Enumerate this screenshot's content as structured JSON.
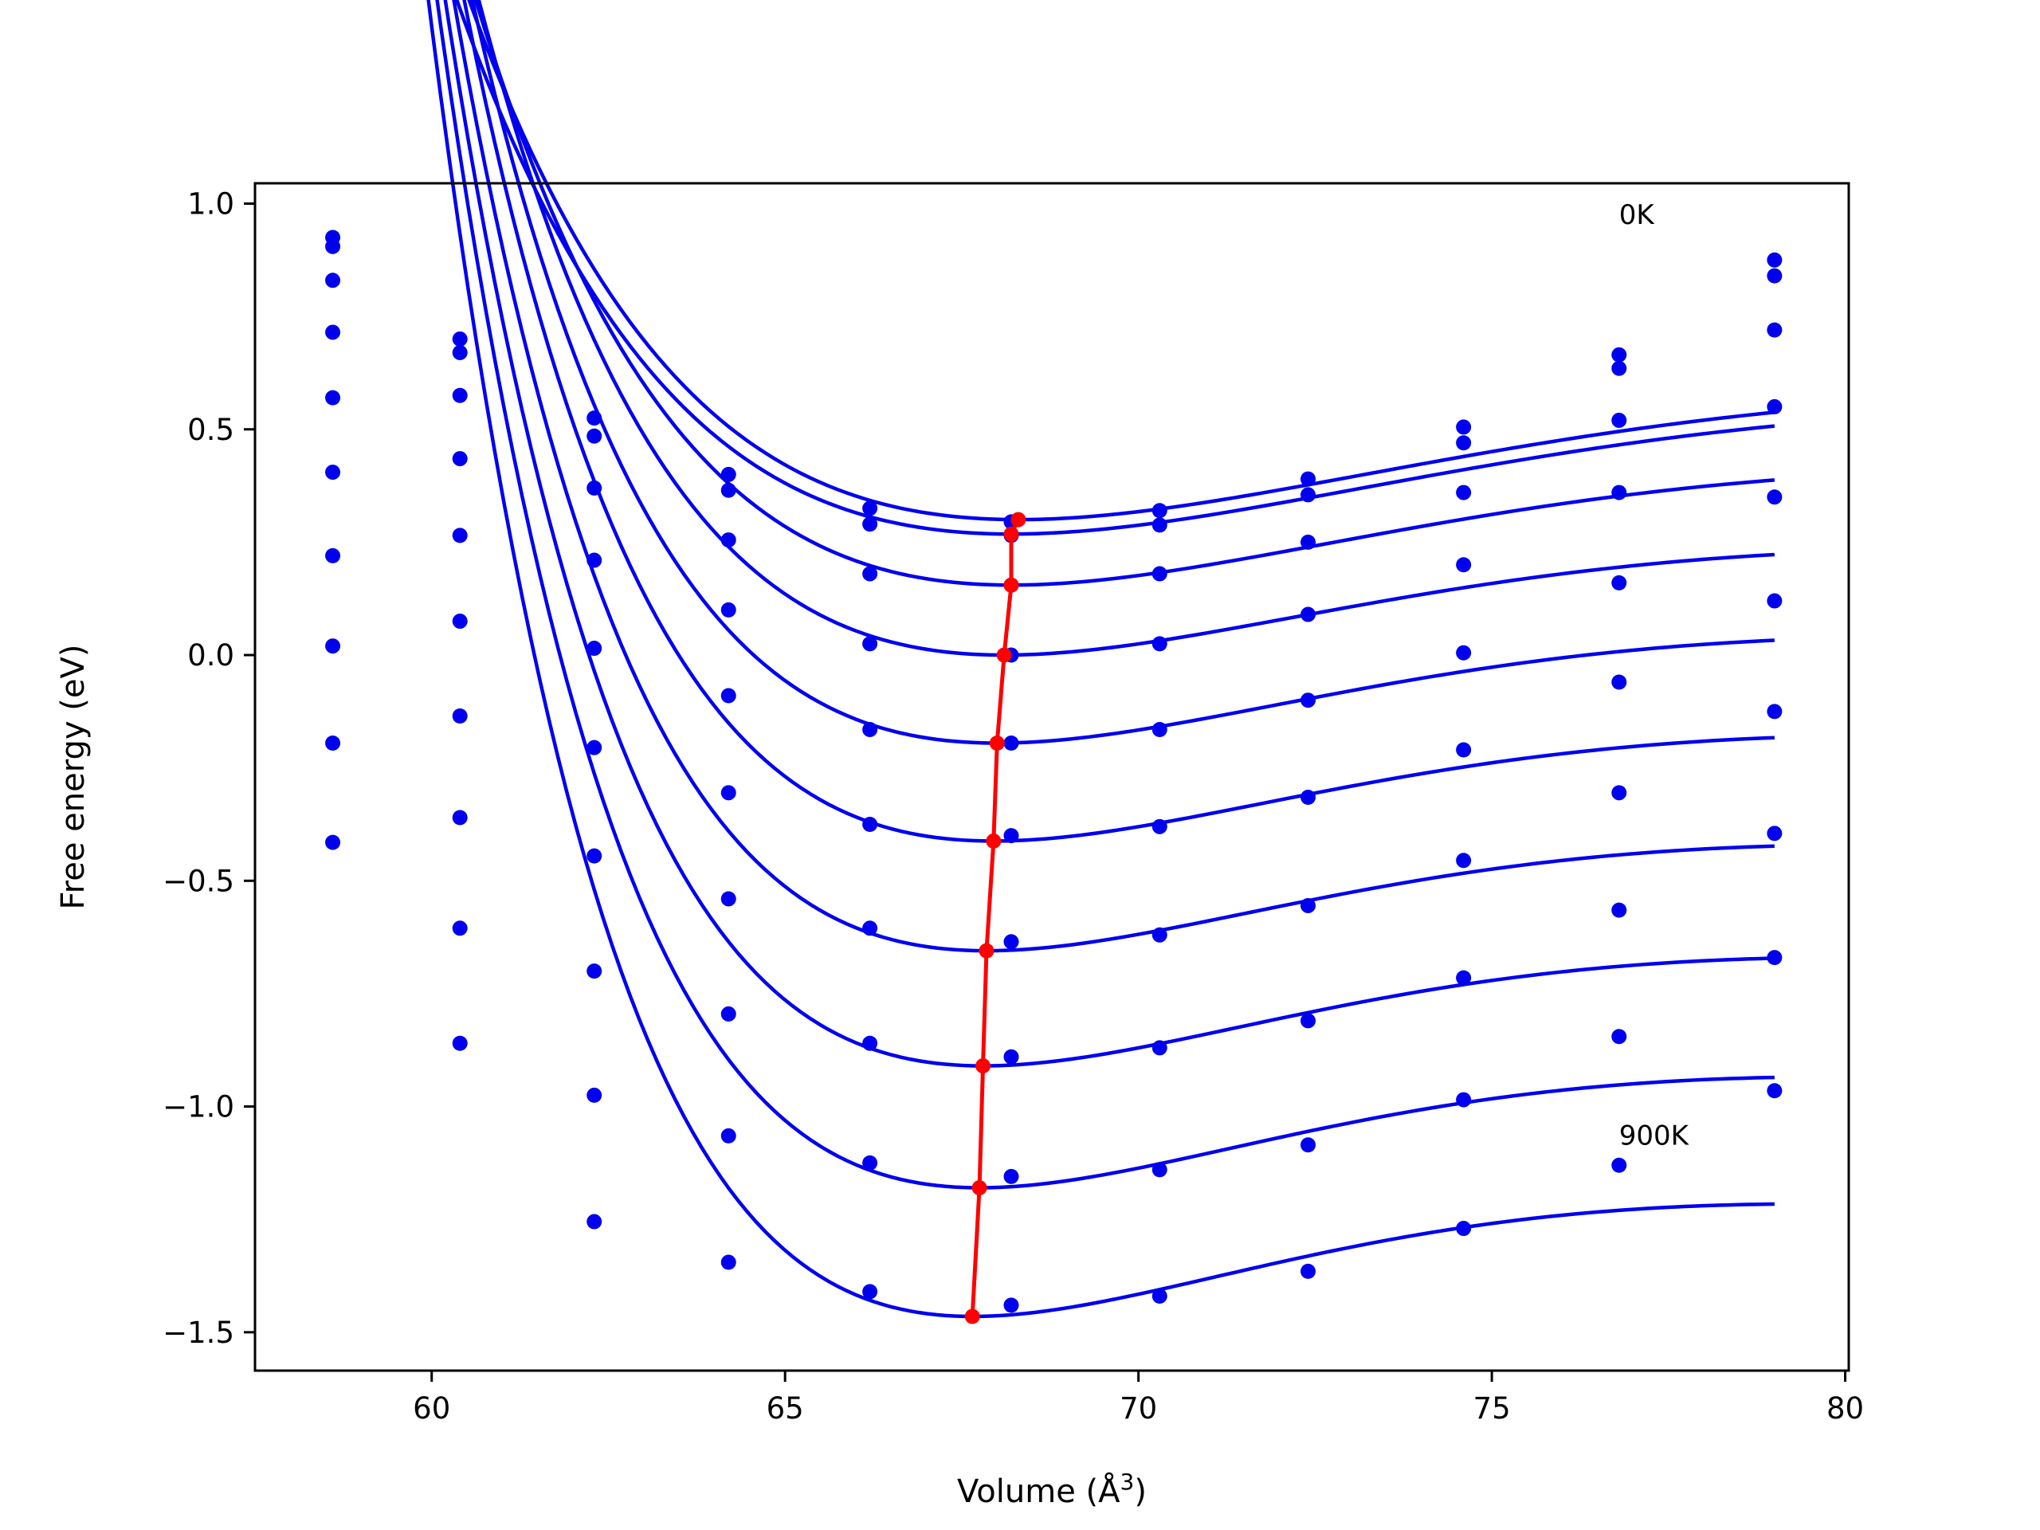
{
  "chart_data": {
    "type": "line",
    "xlabel": "Volume (Å",
    "xlabel_superscript": "3",
    "xlabel_suffix": ")",
    "ylabel": "Free energy (eV)",
    "xlim": [
      57.5,
      80.05
    ],
    "ylim": [
      -1.585,
      1.045
    ],
    "xticks": [
      60,
      65,
      70,
      75,
      80
    ],
    "xtick_labels": [
      "60",
      "65",
      "70",
      "75",
      "80"
    ],
    "yticks": [
      1.0,
      0.5,
      0.0,
      -0.5,
      -1.0,
      -1.5
    ],
    "ytick_labels": [
      "1.0",
      "0.5",
      "0.0",
      "−0.5",
      "−1.0",
      "−1.5"
    ],
    "annotations": [
      {
        "text": "0K",
        "x": 76.8,
        "y": 0.955
      },
      {
        "text": "900K",
        "x": 76.8,
        "y": -1.085
      }
    ],
    "colors": {
      "curves": "#0000ee",
      "minima": "#ff0000"
    },
    "x": [
      58.6,
      60.4,
      62.3,
      64.2,
      66.2,
      68.2,
      70.3,
      72.4,
      74.6,
      76.8,
      79.0
    ],
    "series": [
      {
        "values": [
          0.925,
          0.7,
          0.525,
          0.4,
          0.325,
          0.295,
          0.32,
          0.39,
          0.505,
          0.665,
          0.875
        ],
        "fit": {
          "a": 0.0075,
          "b": 1.2,
          "c": 68.3,
          "d": 0.3
        }
      },
      {
        "values": [
          0.905,
          0.67,
          0.485,
          0.365,
          0.29,
          0.265,
          0.288,
          0.355,
          0.47,
          0.635,
          0.84
        ],
        "fit": {
          "a": 0.0075,
          "b": 1.2,
          "c": 68.2,
          "d": 0.268
        }
      },
      {
        "values": [
          0.83,
          0.575,
          0.37,
          0.255,
          0.18,
          0.155,
          0.18,
          0.25,
          0.36,
          0.52,
          0.72
        ],
        "fit": {
          "a": 0.0083,
          "b": 1.32,
          "c": 68.2,
          "d": 0.155
        }
      },
      {
        "values": [
          0.715,
          0.435,
          0.21,
          0.1,
          0.025,
          0.0,
          0.025,
          0.09,
          0.2,
          0.36,
          0.55
        ],
        "fit": {
          "a": 0.009,
          "b": 1.44,
          "c": 68.1,
          "d": 0.0
        }
      },
      {
        "values": [
          0.57,
          0.265,
          0.015,
          -0.09,
          -0.165,
          -0.195,
          -0.165,
          -0.1,
          0.005,
          0.16,
          0.35
        ],
        "fit": {
          "a": 0.0098,
          "b": 1.5,
          "c": 68.0,
          "d": -0.195
        }
      },
      {
        "values": [
          0.405,
          0.075,
          -0.205,
          -0.305,
          -0.375,
          -0.4,
          -0.38,
          -0.315,
          -0.21,
          -0.06,
          0.12
        ],
        "fit": {
          "a": 0.0104,
          "b": 1.55,
          "c": 67.95,
          "d": -0.412
        }
      },
      {
        "values": [
          0.22,
          -0.135,
          -0.445,
          -0.54,
          -0.605,
          -0.635,
          -0.62,
          -0.555,
          -0.455,
          -0.305,
          -0.125
        ],
        "fit": {
          "a": 0.0111,
          "b": 1.6,
          "c": 67.85,
          "d": -0.655
        }
      },
      {
        "values": [
          0.02,
          -0.36,
          -0.7,
          -0.795,
          -0.86,
          -0.89,
          -0.87,
          -0.81,
          -0.715,
          -0.565,
          -0.395
        ],
        "fit": {
          "a": 0.0118,
          "b": 1.63,
          "c": 67.8,
          "d": -0.91
        }
      },
      {
        "values": [
          -0.195,
          -0.605,
          -0.975,
          -1.065,
          -1.125,
          -1.155,
          -1.14,
          -1.085,
          -0.985,
          -0.845,
          -0.67
        ],
        "fit": {
          "a": 0.0125,
          "b": 1.66,
          "c": 67.75,
          "d": -1.18
        }
      },
      {
        "values": [
          -0.415,
          -0.86,
          -1.255,
          -1.345,
          -1.41,
          -1.44,
          -1.42,
          -1.365,
          -1.27,
          -1.13,
          -0.965
        ],
        "fit": {
          "a": 0.0133,
          "b": 1.7,
          "c": 67.65,
          "d": -1.465
        }
      }
    ],
    "minima": {
      "x": [
        68.3,
        68.2,
        68.2,
        68.1,
        68.0,
        67.95,
        67.85,
        67.8,
        67.75,
        67.65
      ],
      "y": [
        0.3,
        0.268,
        0.155,
        0.0,
        -0.195,
        -0.412,
        -0.655,
        -0.91,
        -1.18,
        -1.465
      ]
    }
  }
}
